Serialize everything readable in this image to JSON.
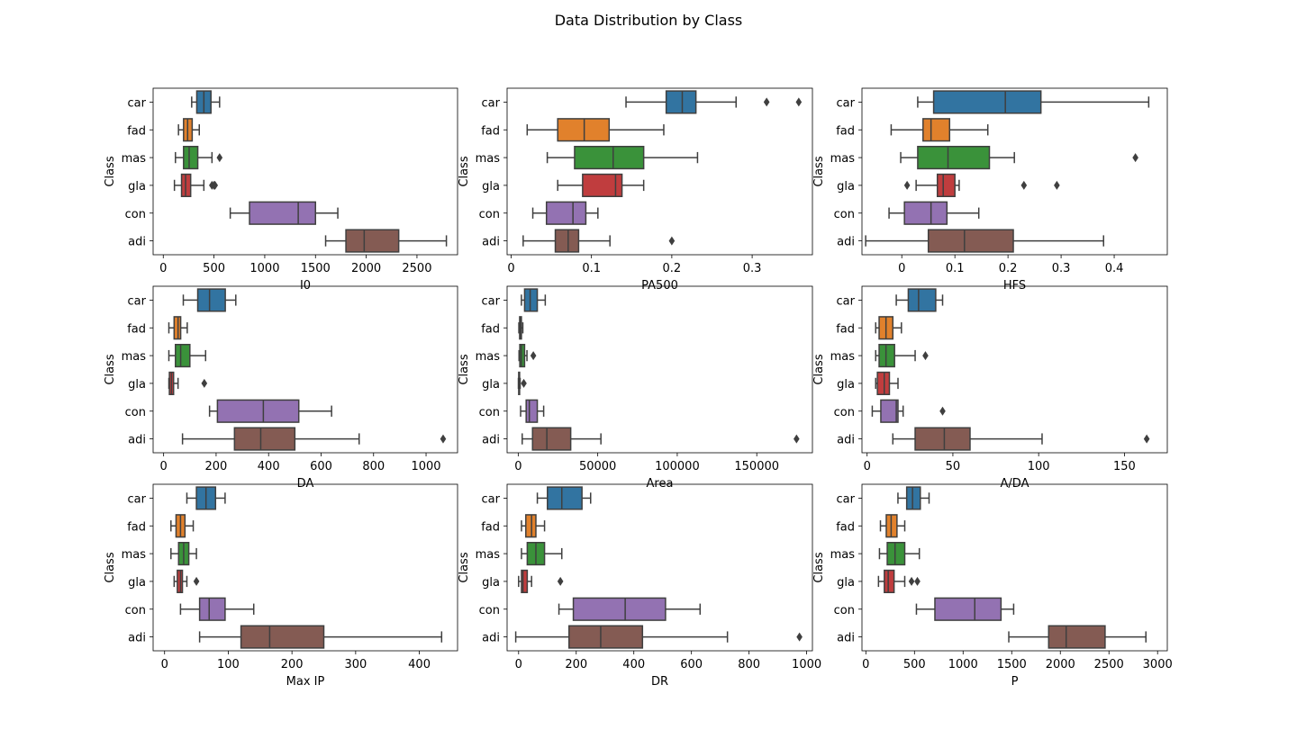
{
  "title": "Data Distribution by Class",
  "colors": {
    "car": "#3274a1",
    "fad": "#e1812c",
    "mas": "#3a923a",
    "gla": "#c03d3e",
    "con": "#9372b2",
    "adi": "#845b53",
    "line": "#3f3f3f"
  },
  "chart_data": [
    {
      "type": "box",
      "variable": "I0",
      "xlabel": "I0",
      "ylabel": "Class",
      "xlim": [
        -100,
        2900
      ],
      "xticks": [
        0,
        500,
        1000,
        1500,
        2000,
        2500
      ],
      "categories": [
        "car",
        "fad",
        "mas",
        "gla",
        "con",
        "adi"
      ],
      "boxes": [
        {
          "class": "car",
          "whislo": 280,
          "q1": 330,
          "med": 400,
          "q3": 470,
          "whishi": 555,
          "fliers": []
        },
        {
          "class": "fad",
          "whislo": 150,
          "q1": 200,
          "med": 240,
          "q3": 285,
          "whishi": 355,
          "fliers": []
        },
        {
          "class": "mas",
          "whislo": 120,
          "q1": 200,
          "med": 255,
          "q3": 340,
          "whishi": 480,
          "fliers": [
            555
          ]
        },
        {
          "class": "gla",
          "whislo": 110,
          "q1": 180,
          "med": 220,
          "q3": 270,
          "whishi": 400,
          "fliers": [
            480,
            500,
            510
          ]
        },
        {
          "class": "con",
          "whislo": 660,
          "q1": 850,
          "med": 1330,
          "q3": 1500,
          "whishi": 1720,
          "fliers": []
        },
        {
          "class": "adi",
          "whislo": 1600,
          "q1": 1800,
          "med": 1980,
          "q3": 2320,
          "whishi": 2790,
          "fliers": []
        }
      ]
    },
    {
      "type": "box",
      "variable": "PA500",
      "xlabel": "PA500",
      "ylabel": "Class",
      "xlim": [
        -0.005,
        0.375
      ],
      "xticks": [
        0.0,
        0.1,
        0.2,
        0.3
      ],
      "categories": [
        "car",
        "fad",
        "mas",
        "gla",
        "con",
        "adi"
      ],
      "boxes": [
        {
          "class": "car",
          "whislo": 0.143,
          "q1": 0.193,
          "med": 0.213,
          "q3": 0.23,
          "whishi": 0.28,
          "fliers": [
            0.318,
            0.358
          ]
        },
        {
          "class": "fad",
          "whislo": 0.02,
          "q1": 0.058,
          "med": 0.091,
          "q3": 0.122,
          "whishi": 0.19,
          "fliers": []
        },
        {
          "class": "mas",
          "whislo": 0.045,
          "q1": 0.079,
          "med": 0.127,
          "q3": 0.165,
          "whishi": 0.232,
          "fliers": []
        },
        {
          "class": "gla",
          "whislo": 0.058,
          "q1": 0.089,
          "med": 0.13,
          "q3": 0.138,
          "whishi": 0.165,
          "fliers": []
        },
        {
          "class": "con",
          "whislo": 0.027,
          "q1": 0.044,
          "med": 0.077,
          "q3": 0.093,
          "whishi": 0.108,
          "fliers": []
        },
        {
          "class": "adi",
          "whislo": 0.015,
          "q1": 0.055,
          "med": 0.071,
          "q3": 0.084,
          "whishi": 0.123,
          "fliers": [
            0.2
          ]
        }
      ]
    },
    {
      "type": "box",
      "variable": "HFS",
      "xlabel": "HFS",
      "ylabel": "Class",
      "xlim": [
        -0.075,
        0.5
      ],
      "xticks": [
        0.0,
        0.1,
        0.2,
        0.3,
        0.4
      ],
      "categories": [
        "car",
        "fad",
        "mas",
        "gla",
        "con",
        "adi"
      ],
      "boxes": [
        {
          "class": "car",
          "whislo": 0.03,
          "q1": 0.06,
          "med": 0.195,
          "q3": 0.262,
          "whishi": 0.465,
          "fliers": []
        },
        {
          "class": "fad",
          "whislo": -0.02,
          "q1": 0.04,
          "med": 0.055,
          "q3": 0.09,
          "whishi": 0.162,
          "fliers": []
        },
        {
          "class": "mas",
          "whislo": -0.002,
          "q1": 0.03,
          "med": 0.087,
          "q3": 0.165,
          "whishi": 0.212,
          "fliers": [
            0.44
          ]
        },
        {
          "class": "gla",
          "whislo": 0.027,
          "q1": 0.067,
          "med": 0.078,
          "q3": 0.1,
          "whishi": 0.108,
          "fliers": [
            0.01,
            0.23,
            0.292
          ]
        },
        {
          "class": "con",
          "whislo": -0.024,
          "q1": 0.005,
          "med": 0.055,
          "q3": 0.085,
          "whishi": 0.145,
          "fliers": []
        },
        {
          "class": "adi",
          "whislo": -0.068,
          "q1": 0.05,
          "med": 0.118,
          "q3": 0.21,
          "whishi": 0.38,
          "fliers": []
        }
      ]
    },
    {
      "type": "box",
      "variable": "DA",
      "xlabel": "DA",
      "ylabel": "Class",
      "xlim": [
        -40,
        1120
      ],
      "xticks": [
        0,
        200,
        400,
        600,
        800,
        1000
      ],
      "categories": [
        "car",
        "fad",
        "mas",
        "gla",
        "con",
        "adi"
      ],
      "boxes": [
        {
          "class": "car",
          "whislo": 75,
          "q1": 130,
          "med": 175,
          "q3": 235,
          "whishi": 275,
          "fliers": []
        },
        {
          "class": "fad",
          "whislo": 20,
          "q1": 40,
          "med": 55,
          "q3": 65,
          "whishi": 90,
          "fliers": []
        },
        {
          "class": "mas",
          "whislo": 20,
          "q1": 45,
          "med": 65,
          "q3": 100,
          "whishi": 160,
          "fliers": []
        },
        {
          "class": "gla",
          "whislo": 20,
          "q1": 22,
          "med": 30,
          "q3": 38,
          "whishi": 55,
          "fliers": [
            155
          ]
        },
        {
          "class": "con",
          "whislo": 175,
          "q1": 205,
          "med": 380,
          "q3": 515,
          "whishi": 640,
          "fliers": []
        },
        {
          "class": "adi",
          "whislo": 72,
          "q1": 270,
          "med": 370,
          "q3": 500,
          "whishi": 745,
          "fliers": [
            1065
          ]
        }
      ]
    },
    {
      "type": "box",
      "variable": "Area",
      "xlabel": "Area",
      "ylabel": "Class",
      "xlim": [
        -7000,
        185000
      ],
      "xticks": [
        0,
        50000,
        100000,
        150000
      ],
      "categories": [
        "car",
        "fad",
        "mas",
        "gla",
        "con",
        "adi"
      ],
      "boxes": [
        {
          "class": "car",
          "whislo": 2000,
          "q1": 4000,
          "med": 7500,
          "q3": 12000,
          "whishi": 17000,
          "fliers": []
        },
        {
          "class": "fad",
          "whislo": 400,
          "q1": 900,
          "med": 1400,
          "q3": 2000,
          "whishi": 2900,
          "fliers": []
        },
        {
          "class": "mas",
          "whislo": 500,
          "q1": 1000,
          "med": 2000,
          "q3": 4000,
          "whishi": 5500,
          "fliers": [
            9500
          ]
        },
        {
          "class": "gla",
          "whislo": 100,
          "q1": 300,
          "med": 500,
          "q3": 800,
          "whishi": 1200,
          "fliers": [
            3500
          ]
        },
        {
          "class": "con",
          "whislo": 1500,
          "q1": 5000,
          "med": 7000,
          "q3": 12000,
          "whishi": 16000,
          "fliers": []
        },
        {
          "class": "adi",
          "whislo": 2500,
          "q1": 9000,
          "med": 18000,
          "q3": 33000,
          "whishi": 52000,
          "fliers": [
            175000
          ]
        }
      ]
    },
    {
      "type": "box",
      "variable": "A/DA",
      "xlabel": "A/DA",
      "ylabel": "Class",
      "xlim": [
        -3,
        175
      ],
      "xticks": [
        0,
        50,
        100,
        150
      ],
      "categories": [
        "car",
        "fad",
        "mas",
        "gla",
        "con",
        "adi"
      ],
      "boxes": [
        {
          "class": "car",
          "whislo": 17,
          "q1": 24,
          "med": 30,
          "q3": 40,
          "whishi": 44,
          "fliers": []
        },
        {
          "class": "fad",
          "whislo": 5,
          "q1": 7,
          "med": 11,
          "q3": 15,
          "whishi": 20,
          "fliers": []
        },
        {
          "class": "mas",
          "whislo": 5,
          "q1": 7,
          "med": 11,
          "q3": 16,
          "whishi": 28,
          "fliers": [
            34
          ]
        },
        {
          "class": "gla",
          "whislo": 5,
          "q1": 6,
          "med": 10,
          "q3": 13,
          "whishi": 18,
          "fliers": []
        },
        {
          "class": "con",
          "whislo": 3,
          "q1": 8,
          "med": 17,
          "q3": 18,
          "whishi": 21,
          "fliers": [
            44
          ]
        },
        {
          "class": "adi",
          "whislo": 15,
          "q1": 28,
          "med": 45,
          "q3": 60,
          "whishi": 102,
          "fliers": [
            163
          ]
        }
      ]
    },
    {
      "type": "box",
      "variable": "Max IP",
      "xlabel": "Max IP",
      "ylabel": "Class",
      "xlim": [
        -18,
        460
      ],
      "xticks": [
        0,
        100,
        200,
        300,
        400
      ],
      "categories": [
        "car",
        "fad",
        "mas",
        "gla",
        "con",
        "adi"
      ],
      "boxes": [
        {
          "class": "car",
          "whislo": 35,
          "q1": 50,
          "med": 65,
          "q3": 80,
          "whishi": 95,
          "fliers": []
        },
        {
          "class": "fad",
          "whislo": 10,
          "q1": 18,
          "med": 25,
          "q3": 32,
          "whishi": 45,
          "fliers": []
        },
        {
          "class": "mas",
          "whislo": 10,
          "q1": 22,
          "med": 30,
          "q3": 38,
          "whishi": 50,
          "fliers": []
        },
        {
          "class": "gla",
          "whislo": 15,
          "q1": 20,
          "med": 25,
          "q3": 28,
          "whishi": 35,
          "fliers": [
            50
          ]
        },
        {
          "class": "con",
          "whislo": 25,
          "q1": 55,
          "med": 70,
          "q3": 95,
          "whishi": 140,
          "fliers": []
        },
        {
          "class": "adi",
          "whislo": 55,
          "q1": 120,
          "med": 165,
          "q3": 250,
          "whishi": 435,
          "fliers": []
        }
      ]
    },
    {
      "type": "box",
      "variable": "DR",
      "xlabel": "DR",
      "ylabel": "Class",
      "xlim": [
        -40,
        1020
      ],
      "xticks": [
        0,
        200,
        400,
        600,
        800,
        1000
      ],
      "categories": [
        "car",
        "fad",
        "mas",
        "gla",
        "con",
        "adi"
      ],
      "boxes": [
        {
          "class": "car",
          "whislo": 65,
          "q1": 100,
          "med": 150,
          "q3": 220,
          "whishi": 250,
          "fliers": []
        },
        {
          "class": "fad",
          "whislo": 10,
          "q1": 25,
          "med": 45,
          "q3": 60,
          "whishi": 90,
          "fliers": []
        },
        {
          "class": "mas",
          "whislo": 10,
          "q1": 30,
          "med": 60,
          "q3": 90,
          "whishi": 150,
          "fliers": []
        },
        {
          "class": "gla",
          "whislo": 0,
          "q1": 10,
          "med": 15,
          "q3": 30,
          "whishi": 45,
          "fliers": [
            145
          ]
        },
        {
          "class": "con",
          "whislo": 140,
          "q1": 190,
          "med": 370,
          "q3": 510,
          "whishi": 630,
          "fliers": []
        },
        {
          "class": "adi",
          "whislo": -10,
          "q1": 175,
          "med": 285,
          "q3": 430,
          "whishi": 725,
          "fliers": [
            975
          ]
        }
      ]
    },
    {
      "type": "box",
      "variable": "P",
      "xlabel": "P",
      "ylabel": "Class",
      "xlim": [
        -40,
        3100
      ],
      "xticks": [
        0,
        500,
        1000,
        1500,
        2000,
        2500,
        3000
      ],
      "categories": [
        "car",
        "fad",
        "mas",
        "gla",
        "con",
        "adi"
      ],
      "boxes": [
        {
          "class": "car",
          "whislo": 330,
          "q1": 420,
          "med": 480,
          "q3": 560,
          "whishi": 650,
          "fliers": []
        },
        {
          "class": "fad",
          "whislo": 150,
          "q1": 210,
          "med": 260,
          "q3": 320,
          "whishi": 400,
          "fliers": []
        },
        {
          "class": "mas",
          "whislo": 140,
          "q1": 220,
          "med": 300,
          "q3": 400,
          "whishi": 550,
          "fliers": []
        },
        {
          "class": "gla",
          "whislo": 130,
          "q1": 190,
          "med": 230,
          "q3": 290,
          "whishi": 400,
          "fliers": [
            470,
            530
          ]
        },
        {
          "class": "con",
          "whislo": 520,
          "q1": 710,
          "med": 1120,
          "q3": 1390,
          "whishi": 1520,
          "fliers": []
        },
        {
          "class": "adi",
          "whislo": 1470,
          "q1": 1880,
          "med": 2060,
          "q3": 2460,
          "whishi": 2880,
          "fliers": []
        }
      ]
    }
  ]
}
